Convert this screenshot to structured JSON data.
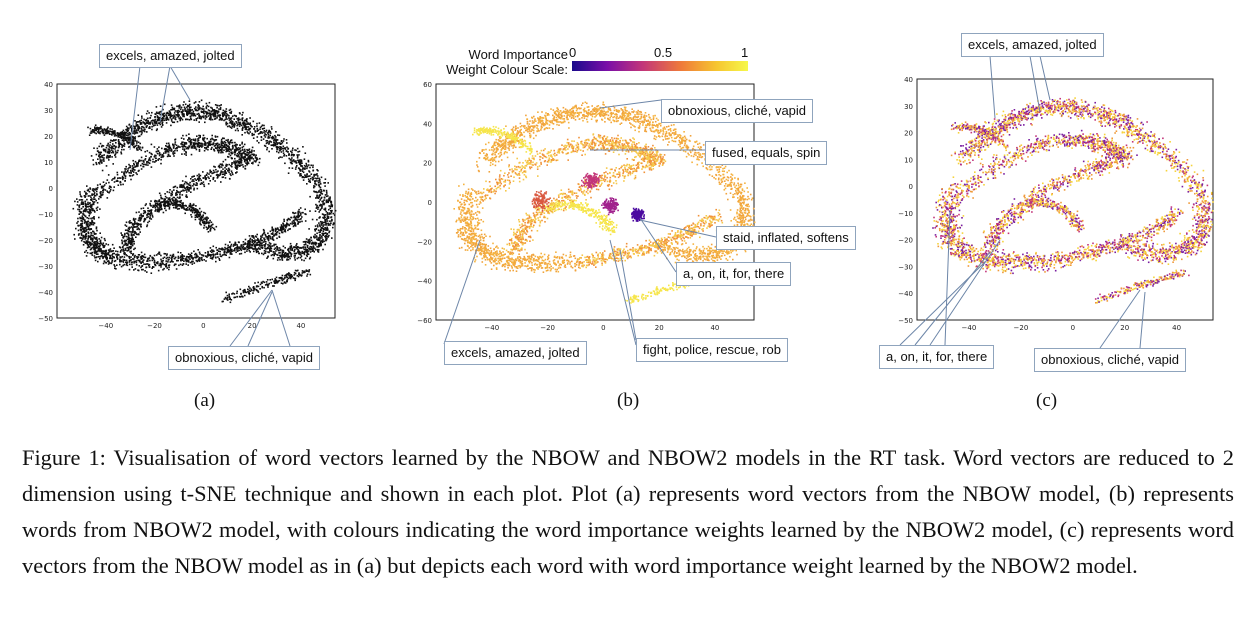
{
  "panel_labels": [
    "(a)",
    "(b)",
    "(c)"
  ],
  "annotations": {
    "a": {
      "top": "excels, amazed, jolted",
      "bottom": "obnoxious, cliché, vapid"
    },
    "b": {
      "top": "obnoxious, cliché, vapid",
      "fused": "fused, equals, spin",
      "staid": "staid, inflated, softens",
      "stop": "a, on, it, for, there",
      "fight": "fight, police, rescue, rob",
      "excels": "excels, amazed, jolted"
    },
    "c": {
      "top": "excels, amazed, jolted",
      "stop": "a, on, it, for, there",
      "bottom": "obnoxious, cliché, vapid"
    }
  },
  "colour_scale": {
    "title_line1": "Word Importance",
    "title_line2": "Weight Colour Scale:",
    "ticks": [
      "0",
      "0.5",
      "1"
    ],
    "colors": [
      "#1a0a8c",
      "#7a0fa8",
      "#c2357a",
      "#ef7a3a",
      "#f6c530",
      "#f6f84b"
    ]
  },
  "chart_data": [
    {
      "type": "scatter",
      "panel": "(a)",
      "xlim": [
        -50,
        40
      ],
      "ylim": [
        -50,
        40
      ],
      "xticks": [
        "−40",
        "−20",
        "0",
        "20",
        "40"
      ],
      "yticks": [
        "40",
        "30",
        "20",
        "10",
        "0",
        "−10",
        "−20",
        "−30",
        "−40",
        "−50"
      ],
      "point_color": "#111111"
    },
    {
      "type": "scatter",
      "panel": "(b)",
      "xlim": [
        -50,
        50
      ],
      "ylim": [
        -60,
        60
      ],
      "xticks": [
        "−40",
        "−20",
        "0",
        "20",
        "40"
      ],
      "yticks": [
        "60",
        "40",
        "20",
        "0",
        "−20",
        "−40",
        "−60"
      ],
      "color_scale": "word importance weight"
    },
    {
      "type": "scatter",
      "panel": "(c)",
      "xlim": [
        -50,
        40
      ],
      "ylim": [
        -50,
        40
      ],
      "xticks": [
        "−40",
        "−20",
        "0",
        "20",
        "40"
      ],
      "yticks": [
        "40",
        "30",
        "20",
        "10",
        "0",
        "−10",
        "−20",
        "−30",
        "−40",
        "−50"
      ],
      "color_scale": "word importance weight"
    }
  ],
  "caption": "Figure 1: Visualisation of word vectors learned by the NBOW and NBOW2 models in the RT task. Word vectors are reduced to 2 dimension using t-SNE technique and shown in each plot. Plot (a) represents word vectors from the NBOW model, (b) represents words from NBOW2 model, with colours indicating the word importance weights learned by the NBOW2 model, (c) represents word vectors from the NBOW model as in (a) but depicts each word with word importance weight learned by the NBOW2 model."
}
